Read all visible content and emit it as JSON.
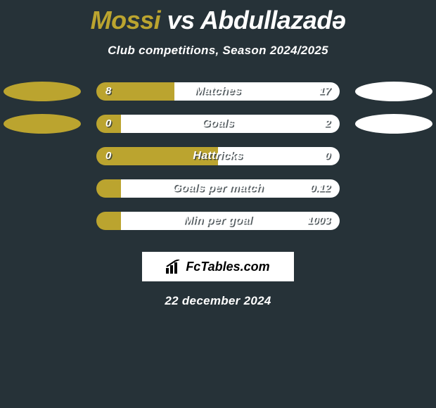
{
  "title": {
    "player1": "Mossi",
    "vs": "vs",
    "player2": "Abdullazadə",
    "player1_color": "#bba42f",
    "vs_color": "#ffffff",
    "player2_color": "#ffffff"
  },
  "subtitle": "Club competitions, Season 2024/2025",
  "colors": {
    "left": "#bba42f",
    "right": "#ffffff",
    "bg": "#263238",
    "track_bg": "#263238"
  },
  "bar": {
    "track_width": 346,
    "height": 26,
    "radius": 13
  },
  "rows": [
    {
      "label": "Matches",
      "left": "8",
      "right": "17",
      "left_pct": 32,
      "right_pct": 68,
      "show_ellipse": true
    },
    {
      "label": "Goals",
      "left": "0",
      "right": "2",
      "left_pct": 10,
      "right_pct": 90,
      "show_ellipse": true
    },
    {
      "label": "Hattricks",
      "left": "0",
      "right": "0",
      "left_pct": 50,
      "right_pct": 50,
      "show_ellipse": false
    },
    {
      "label": "Goals per match",
      "left": "",
      "right": "0.12",
      "left_pct": 10,
      "right_pct": 90,
      "show_ellipse": false
    },
    {
      "label": "Min per goal",
      "left": "",
      "right": "1003",
      "left_pct": 10,
      "right_pct": 90,
      "show_ellipse": false
    }
  ],
  "attribution": "FcTables.com",
  "footer_date": "22 december 2024"
}
